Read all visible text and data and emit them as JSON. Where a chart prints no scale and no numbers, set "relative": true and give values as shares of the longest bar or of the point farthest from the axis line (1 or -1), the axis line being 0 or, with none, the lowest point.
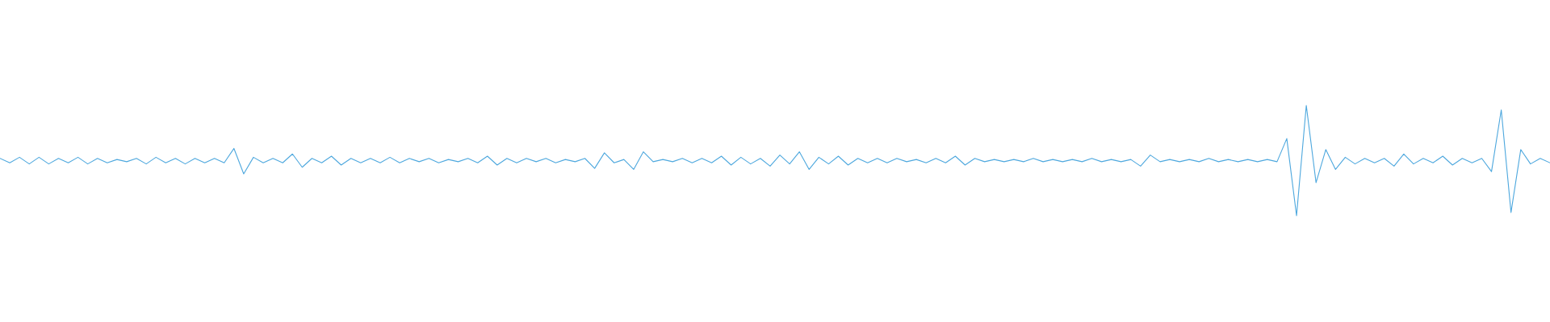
{
  "chart_data": {
    "type": "line",
    "relative": true,
    "categories": [
      null,
      null,
      null,
      null,
      null,
      null,
      null,
      null,
      null,
      null,
      null,
      null,
      null,
      null,
      null,
      null,
      null,
      null,
      null,
      null,
      null,
      null,
      null,
      null,
      null,
      null,
      null,
      null,
      null,
      null,
      null,
      null,
      null,
      null,
      null,
      null,
      null,
      null,
      null,
      null,
      null,
      null,
      null,
      null,
      null,
      null,
      null,
      null,
      null,
      null,
      null,
      null,
      null,
      null,
      null,
      null,
      null,
      null,
      null,
      null,
      null,
      null,
      null,
      null,
      null,
      null,
      null,
      null,
      null,
      null,
      null,
      null,
      null,
      null,
      null,
      null,
      null,
      null,
      null,
      null,
      null,
      null,
      null,
      null,
      null,
      null,
      null,
      null,
      null,
      null,
      null,
      null,
      null,
      null,
      null,
      null,
      null,
      null,
      null,
      null,
      null,
      null,
      null,
      null,
      null,
      null,
      null,
      null,
      null,
      null,
      null,
      null,
      null,
      null,
      null,
      null,
      null,
      null,
      null,
      null,
      null,
      null,
      null,
      null,
      null,
      null,
      null,
      null,
      null,
      null,
      null,
      null,
      null,
      null,
      null,
      null,
      null,
      null,
      null,
      null,
      null,
      null,
      null,
      null,
      null,
      null,
      null,
      null,
      null,
      null,
      null,
      null,
      null,
      null,
      null,
      null,
      null,
      null,
      null,
      null
    ],
    "series": [
      {
        "color": "#4ea8de",
        "values": [
          0.52,
          0.48,
          0.53,
          0.47,
          0.53,
          0.47,
          0.52,
          0.48,
          0.53,
          0.47,
          0.52,
          0.48,
          0.51,
          0.49,
          0.52,
          0.47,
          0.53,
          0.48,
          0.52,
          0.47,
          0.52,
          0.48,
          0.52,
          0.48,
          0.61,
          0.38,
          0.53,
          0.48,
          0.52,
          0.48,
          0.56,
          0.44,
          0.52,
          0.48,
          0.54,
          0.46,
          0.52,
          0.48,
          0.52,
          0.48,
          0.53,
          0.48,
          0.52,
          0.49,
          0.52,
          0.48,
          0.51,
          0.49,
          0.52,
          0.48,
          0.54,
          0.46,
          0.52,
          0.48,
          0.52,
          0.49,
          0.52,
          0.48,
          0.51,
          0.49,
          0.52,
          0.43,
          0.57,
          0.48,
          0.51,
          0.42,
          0.58,
          0.49,
          0.51,
          0.49,
          0.52,
          0.48,
          0.52,
          0.48,
          0.54,
          0.46,
          0.53,
          0.47,
          0.52,
          0.45,
          0.55,
          0.47,
          0.58,
          0.42,
          0.53,
          0.47,
          0.54,
          0.46,
          0.52,
          0.48,
          0.52,
          0.48,
          0.52,
          0.49,
          0.51,
          0.48,
          0.52,
          0.48,
          0.54,
          0.46,
          0.52,
          0.49,
          0.51,
          0.49,
          0.51,
          0.49,
          0.52,
          0.49,
          0.51,
          0.49,
          0.51,
          0.49,
          0.52,
          0.49,
          0.51,
          0.49,
          0.51,
          0.45,
          0.55,
          0.49,
          0.51,
          0.49,
          0.51,
          0.49,
          0.52,
          0.49,
          0.51,
          0.49,
          0.51,
          0.49,
          0.51,
          0.49,
          0.7,
          0.0,
          1.0,
          0.3,
          0.6,
          0.42,
          0.53,
          0.47,
          0.52,
          0.48,
          0.52,
          0.45,
          0.56,
          0.47,
          0.52,
          0.48,
          0.54,
          0.46,
          0.52,
          0.48,
          0.52,
          0.4,
          0.96,
          0.03,
          0.6,
          0.47,
          0.52,
          0.48
        ]
      }
    ]
  }
}
